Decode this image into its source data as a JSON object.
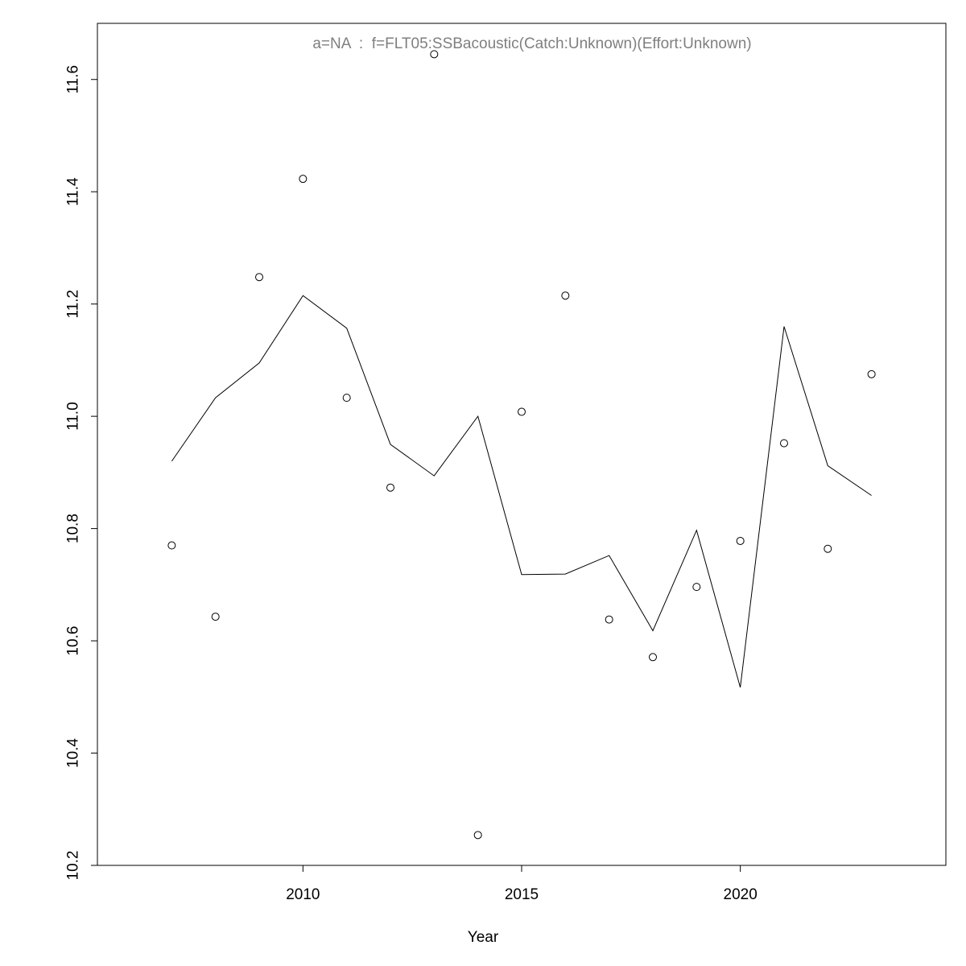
{
  "chart_data": {
    "type": "line",
    "title": "a=NA  :  f=FLT05:SSBacoustic(Catch:Unknown)(Effort:Unknown)",
    "xlabel": "Year",
    "ylabel": "",
    "xlim": [
      2005.3,
      2024.7
    ],
    "ylim": [
      10.2,
      11.7
    ],
    "x_ticks": [
      2010,
      2015,
      2020
    ],
    "x_tick_labels": [
      "2010",
      "2015",
      "2020"
    ],
    "y_ticks": [
      10.2,
      10.4,
      10.6,
      10.8,
      11.0,
      11.2,
      11.4,
      11.6
    ],
    "y_tick_labels": [
      "10.2",
      "10.4",
      "10.6",
      "10.8",
      "11.0",
      "11.2",
      "11.4",
      "11.6"
    ],
    "grid": false,
    "legend": "none",
    "series": [
      {
        "kind": "line",
        "color": "#000000",
        "x": [
          2007,
          2008,
          2009,
          2010,
          2011,
          2012,
          2013,
          2014,
          2015,
          2016,
          2017,
          2018,
          2019,
          2020,
          2021,
          2022,
          2023
        ],
        "y": [
          10.92,
          11.033,
          11.095,
          11.215,
          11.157,
          10.95,
          10.894,
          11.0,
          10.718,
          10.719,
          10.752,
          10.618,
          10.797,
          10.517,
          11.16,
          10.912,
          10.859
        ]
      },
      {
        "kind": "points",
        "color": "#000000",
        "x": [
          2007,
          2008,
          2009,
          2010,
          2011,
          2012,
          2013,
          2014,
          2015,
          2016,
          2017,
          2018,
          2019,
          2020,
          2021,
          2022,
          2023
        ],
        "y": [
          10.77,
          10.643,
          11.248,
          11.423,
          11.033,
          10.873,
          11.645,
          10.254,
          11.008,
          11.215,
          10.638,
          10.571,
          10.696,
          10.778,
          10.952,
          10.764,
          11.075
        ]
      }
    ]
  }
}
